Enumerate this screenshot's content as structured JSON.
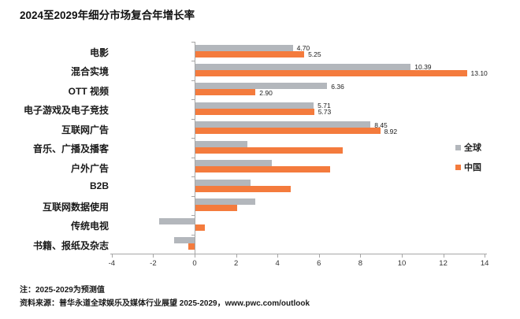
{
  "title": "2024至2029年细分市场复合年增长率",
  "chart_data": {
    "type": "bar",
    "orientation": "horizontal",
    "title": "2024至2029年细分市场复合年增长率",
    "categories": [
      "电影",
      "混合实境",
      "OTT 视频",
      "电子游戏及电子竞技",
      "互联网广告",
      "音乐、广播及播客",
      "户外广告",
      "B2B",
      "互联网数据使用",
      "传统电视",
      "书籍、报纸及杂志"
    ],
    "series": [
      {
        "name": "全球",
        "color": "#b3b7bc",
        "values": [
          4.7,
          10.39,
          6.36,
          5.71,
          8.45,
          2.5,
          3.7,
          2.65,
          2.9,
          -1.7,
          -1.0
        ],
        "labels": [
          "4.70",
          "10.39",
          "6.36",
          "5.71",
          "8.45",
          "",
          "",
          "",
          "",
          "",
          ""
        ]
      },
      {
        "name": "中国",
        "color": "#f47b3d",
        "values": [
          5.25,
          13.1,
          2.9,
          5.73,
          8.92,
          7.1,
          6.5,
          4.6,
          2.0,
          0.45,
          -0.3
        ],
        "labels": [
          "5.25",
          "13.10",
          "2.90",
          "5.73",
          "8.92",
          "",
          "",
          "",
          "",
          "",
          ""
        ]
      }
    ],
    "xticks": [
      -4,
      -2,
      0,
      2,
      4,
      6,
      8,
      10,
      12,
      14
    ],
    "xlim": [
      -4,
      14
    ],
    "grid": false,
    "legend_position": "right"
  },
  "legend": {
    "items": [
      {
        "label": "全球",
        "color": "#b3b7bc"
      },
      {
        "label": "中国",
        "color": "#f47b3d"
      }
    ]
  },
  "notes": {
    "note": "注：2025-2029为预测值",
    "source": "资料来源：普华永道全球娱乐及媒体行业展望 2025-2029，www.pwc.com/outlook"
  }
}
